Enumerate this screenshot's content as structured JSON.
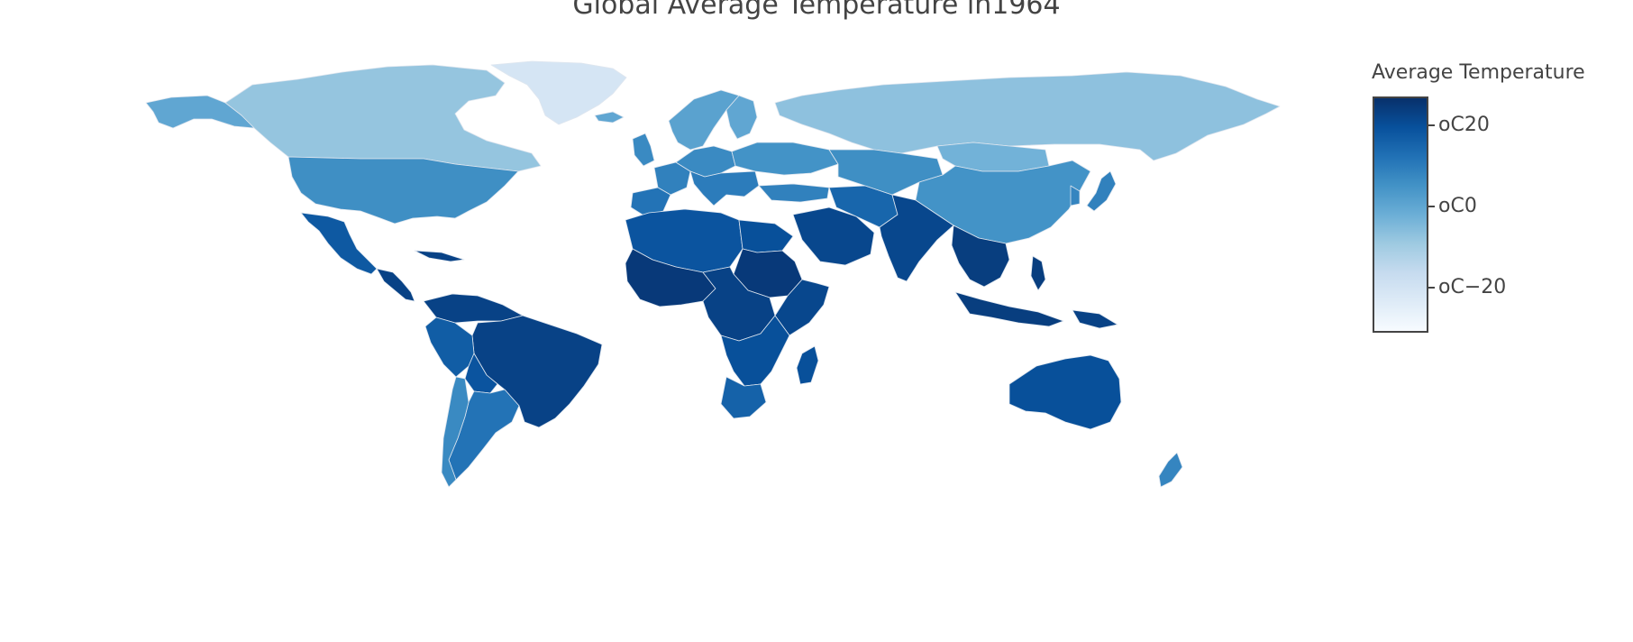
{
  "title": "Global Average Temperature in1964",
  "legend": {
    "title": "Average Temperature",
    "ticks": [
      {
        "label": "oC20",
        "value": 20
      },
      {
        "label": "oC0",
        "value": 0
      },
      {
        "label": "oC−20",
        "value": -20
      }
    ],
    "range": [
      -29,
      29
    ],
    "colors": [
      "#f7fbff",
      "#deebf7",
      "#c6dbef",
      "#9ecae1",
      "#6baed6",
      "#4292c6",
      "#2171b5",
      "#08519c",
      "#08306b"
    ]
  },
  "chart_data": {
    "type": "choropleth",
    "title": "Global Average Temperature in1964",
    "colorbar_title": "Average Temperature",
    "scale": "Blues",
    "range": [
      -29,
      29
    ],
    "regions": [
      {
        "name": "Greenland",
        "value": -19
      },
      {
        "name": "Canada",
        "value": -6
      },
      {
        "name": "Alaska",
        "value": 2
      },
      {
        "name": "Russia",
        "value": -5
      },
      {
        "name": "United States",
        "value": 8
      },
      {
        "name": "Mexico",
        "value": 20
      },
      {
        "name": "Central America",
        "value": 25
      },
      {
        "name": "Cuba",
        "value": 25
      },
      {
        "name": "South America North",
        "value": 25
      },
      {
        "name": "Brazil",
        "value": 25
      },
      {
        "name": "Peru",
        "value": 19
      },
      {
        "name": "Bolivia",
        "value": 21
      },
      {
        "name": "Argentina",
        "value": 14
      },
      {
        "name": "Chile",
        "value": 9
      },
      {
        "name": "Iceland",
        "value": 2
      },
      {
        "name": "Norway Sweden",
        "value": 3
      },
      {
        "name": "Finland",
        "value": 2
      },
      {
        "name": "United Kingdom",
        "value": 9
      },
      {
        "name": "France",
        "value": 11
      },
      {
        "name": "Iberia",
        "value": 14
      },
      {
        "name": "Central Europe",
        "value": 9
      },
      {
        "name": "Eastern Europe",
        "value": 7
      },
      {
        "name": "Italy Balkans",
        "value": 12
      },
      {
        "name": "Turkey",
        "value": 11
      },
      {
        "name": "North Africa",
        "value": 21
      },
      {
        "name": "Egypt",
        "value": 22
      },
      {
        "name": "West Africa",
        "value": 27
      },
      {
        "name": "Sudan",
        "value": 27
      },
      {
        "name": "Central Africa",
        "value": 25
      },
      {
        "name": "East Africa",
        "value": 24
      },
      {
        "name": "Southern Africa",
        "value": 22
      },
      {
        "name": "South Africa",
        "value": 18
      },
      {
        "name": "Madagascar",
        "value": 22
      },
      {
        "name": "Arabian Peninsula",
        "value": 24
      },
      {
        "name": "Iran",
        "value": 17
      },
      {
        "name": "Central Asia",
        "value": 8
      },
      {
        "name": "Mongolia",
        "value": -1
      },
      {
        "name": "China",
        "value": 7
      },
      {
        "name": "Japan",
        "value": 11
      },
      {
        "name": "Korea",
        "value": 10
      },
      {
        "name": "India",
        "value": 24
      },
      {
        "name": "Southeast Asia",
        "value": 26
      },
      {
        "name": "Indonesia",
        "value": 26
      },
      {
        "name": "Papua New Guinea",
        "value": 25
      },
      {
        "name": "Philippines",
        "value": 26
      },
      {
        "name": "Australia",
        "value": 22
      },
      {
        "name": "New Zealand",
        "value": 10
      }
    ]
  }
}
